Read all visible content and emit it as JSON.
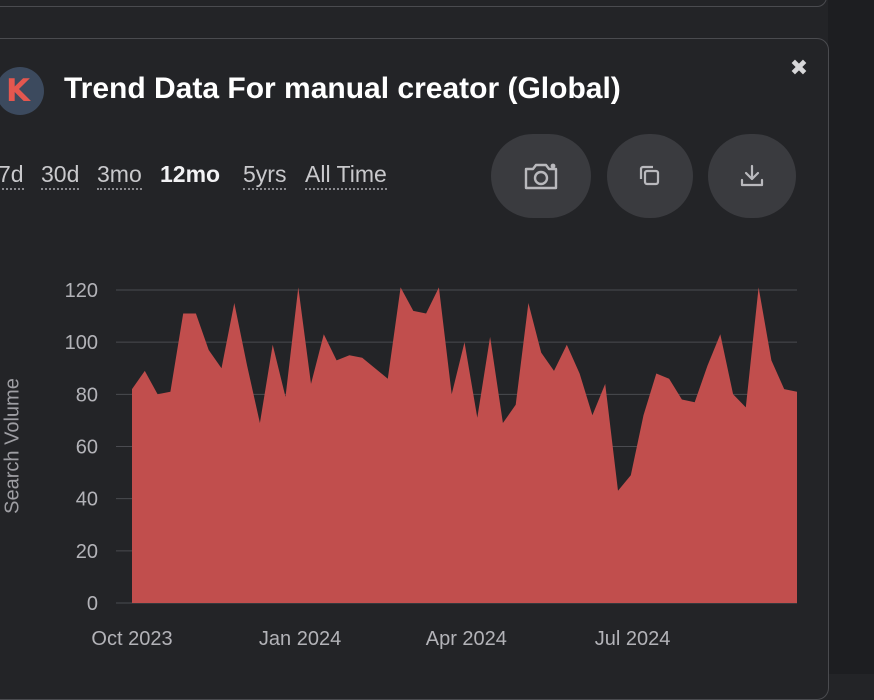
{
  "header": {
    "logo_letter": "K",
    "title": "Trend Data For manual creator (Global)"
  },
  "time_ranges": [
    {
      "label": "7d",
      "active": false
    },
    {
      "label": "30d",
      "active": false
    },
    {
      "label": "3mo",
      "active": false
    },
    {
      "label": "12mo",
      "active": true
    },
    {
      "label": "5yrs",
      "active": false
    },
    {
      "label": "All Time",
      "active": false
    }
  ],
  "actions": [
    {
      "name": "screenshot-button",
      "icon": "camera-icon"
    },
    {
      "name": "copy-button",
      "icon": "copy-icon"
    },
    {
      "name": "download-button",
      "icon": "download-icon"
    }
  ],
  "colors": {
    "background": "#232427",
    "area_fill": "#c14e4d",
    "grid": "#4a4b50",
    "axis_text": "#b3b3b8",
    "title": "#ffffff"
  },
  "chart_data": {
    "type": "area",
    "ylabel": "Search Volume",
    "xlabel": "",
    "ylim": [
      0,
      120
    ],
    "yticks": [
      0,
      20,
      40,
      60,
      80,
      100,
      120
    ],
    "x_range": [
      "2023-10-01",
      "2024-09-29"
    ],
    "xticks": [
      {
        "label": "Oct 2023",
        "date": "2023-10-01"
      },
      {
        "label": "Jan 2024",
        "date": "2024-01-01"
      },
      {
        "label": "Apr 2024",
        "date": "2024-04-01"
      },
      {
        "label": "Jul 2024",
        "date": "2024-07-01"
      }
    ],
    "grid": true,
    "series": [
      {
        "x": [
          "2023-10-01",
          "2023-10-08",
          "2023-10-15",
          "2023-10-22",
          "2023-10-29",
          "2023-11-05",
          "2023-11-12",
          "2023-11-19",
          "2023-11-26",
          "2023-12-03",
          "2023-12-10",
          "2023-12-17",
          "2023-12-24",
          "2023-12-31",
          "2024-01-07",
          "2024-01-14",
          "2024-01-21",
          "2024-01-28",
          "2024-02-04",
          "2024-02-11",
          "2024-02-18",
          "2024-02-25",
          "2024-03-03",
          "2024-03-10",
          "2024-03-17",
          "2024-03-24",
          "2024-03-31",
          "2024-04-07",
          "2024-04-14",
          "2024-04-21",
          "2024-04-28",
          "2024-05-05",
          "2024-05-12",
          "2024-05-19",
          "2024-05-26",
          "2024-06-02",
          "2024-06-09",
          "2024-06-16",
          "2024-06-23",
          "2024-06-30",
          "2024-07-07",
          "2024-07-14",
          "2024-07-21",
          "2024-07-28",
          "2024-08-04",
          "2024-08-11",
          "2024-08-18",
          "2024-08-25",
          "2024-09-01",
          "2024-09-08",
          "2024-09-15",
          "2024-09-22",
          "2024-09-29"
        ],
        "values": [
          82,
          89,
          80,
          81,
          111,
          111,
          97,
          90,
          115,
          91,
          69,
          99,
          79,
          121,
          84,
          103,
          93,
          95,
          94,
          90,
          86,
          121,
          112,
          111,
          121,
          80,
          100,
          71,
          102,
          69,
          76,
          115,
          96,
          89,
          99,
          88,
          72,
          84,
          43,
          49,
          72,
          88,
          86,
          78,
          77,
          91,
          103,
          80,
          75,
          121,
          93,
          82,
          81
        ]
      }
    ]
  }
}
